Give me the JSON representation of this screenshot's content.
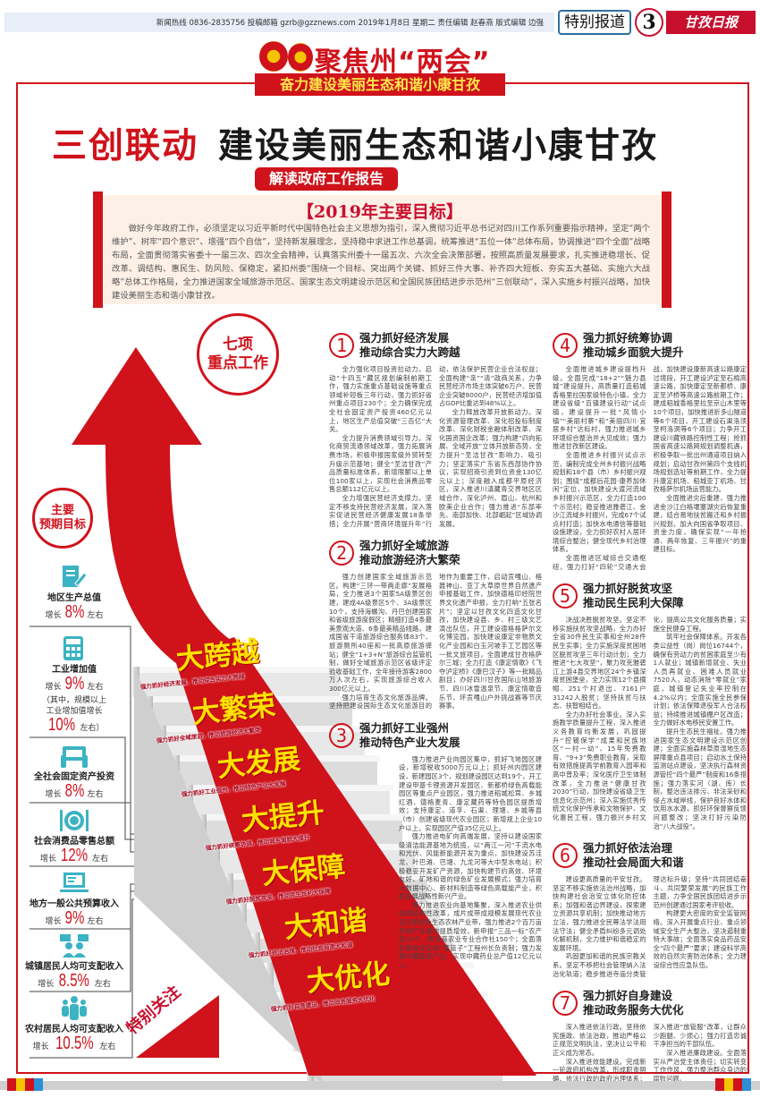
{
  "masthead": {
    "info": "新闻热线 0836-2835756  投稿邮箱 gzrb@gzznews.com  2019年1月8日 星期二  责任编辑 赵春燕  版式编辑 边强",
    "section": "特别报道",
    "page_number": "3",
    "paper_logo": "甘孜日报"
  },
  "focus": {
    "title": "聚焦州“两会”",
    "banner": "奋力建设美丽生态和谐小康甘孜"
  },
  "headline": {
    "red": "三创联动",
    "dark": "建设美丽生态和谐小康甘孜"
  },
  "report_label": "解读政府工作报告",
  "goals_box": {
    "heading": "【2019年主要目标】",
    "text": "做好今年政府工作，必须坚定以习近平新时代中国特色社会主义思想为指引，深入贯彻习近平总书记对四川工作系列重要指示精神，坚定“两个维护”、树牢“四个意识”、增强“四个自信”，坚持新发展理念，坚持稳中求进工作总基调，统筹推进“五位一体”总体布局，协调推进“四个全面”战略布局，全面贯彻落实省委十一届三次、四次全会精神，认真落实州委十一届五次、六次全会决策部署，按照高质量发展要求，扎实推进稳增长、促改革、调结构、惠民生、防风险、保稳定，紧扣州委“围绕一个目标、突出两个关键、抓好三件大事、补齐四大短板、夯实五大基础、实施六大战略”总体工作格局，全力推进国家全域旅游示范区、国家生态文明建设示范区和全国民族团结进步示范州“三创联动”，深入实施乡村振兴战略，加快建设美丽生态和谐小康甘孜。"
  },
  "circle_seven": "七项\n重点工作",
  "circle_goals": "主要\n预期目标",
  "expected_goals": [
    {
      "icon": "document-pen-icon",
      "label": "地区生产总值",
      "prefix": "增长",
      "value": "8%",
      "suffix": "左右"
    },
    {
      "icon": "calculator-icon",
      "label": "工业增加值",
      "prefix": "增长",
      "value": "9%",
      "suffix": "左右",
      "note_1": "（其中，规模以上",
      "note_2": "工业增加值增长",
      "note_value": "10%",
      "note_suffix": "左右）"
    },
    {
      "icon": "tablet-hands-icon",
      "label": "全社会固定资产投资",
      "prefix": "增长",
      "value": "8%",
      "suffix": "左右"
    },
    {
      "icon": "plate-cutlery-icon",
      "label": "社会消费品零售总额",
      "prefix": "增长",
      "value": "12%",
      "suffix": "左右"
    },
    {
      "icon": "laptop-icon",
      "label": "地方一般公共预算收入",
      "prefix": "增长",
      "value": "9%",
      "suffix": "左右"
    },
    {
      "icon": "people-chat-icon",
      "label": "城镇居民人均可支配收入",
      "prefix": "增长",
      "value": "8.5%",
      "suffix": "左右"
    },
    {
      "icon": "group-icon",
      "label": "农村居民人均可支配收入",
      "prefix": "增长",
      "value": "10.5%",
      "suffix": "左右"
    }
  ],
  "stairs": [
    {
      "word": "大跨越",
      "caption": "强力抓好经济发展，推动综合实力大跨越"
    },
    {
      "word": "大繁荣",
      "caption": "强力抓好全域旅游，推动旅游经济大繁荣"
    },
    {
      "word": "大发展",
      "caption": "强力抓好工业强州，推动特色产业大发展"
    },
    {
      "word": "大提升",
      "caption": "强力抓好统筹协调，推动城乡面貌大提升"
    },
    {
      "word": "大保障",
      "caption": "强力抓好脱贫攻坚，推动民生民利大保障"
    },
    {
      "word": "大和谐",
      "caption": "强力抓好依法治理，推动社会局面大和谐"
    },
    {
      "word": "大优化",
      "caption": "强力抓好自身建设，推动政务服务大优化"
    }
  ],
  "special_focus": "特别关注",
  "sections": [
    {
      "num": "1",
      "title_1": "强力抓好经济发展",
      "title_2": "推动综合实力大跨越",
      "paragraphs": [
        "全力强化项目投资拉动力。启动“十四五”藏区规划编制前期工作，强力实施重点基础设施等重点领域补短板三年行动，强力抓好省州重点项目230个；全力确保完成全社会固定资产投资460亿元以上，地区生产总值突破“三百亿”大关。",
        "全力提升消费领域引导力。深化商贸流通领域改革，强力拓展消费市场，积极申报国家级外贸转型升级示范基地；健全“圣洁甘孜”产品质量标准体系，新增限额以上单位100家以上，实现社会消费品零售总额112亿元以上。",
        "全力增强民营经济支撑力。坚定不移支持民营经济发展，深入落实促进民营经济健康发展18条举措；全力开展“营商环境提升年”行动，依法保护民营企业合法权益；全面构建“亲”“清”政商关系，力争民营经济市场主体突破6万户、民营企业突破8000户，民营经济增加值占GDP比重达到48%以上。",
        "全力释放改革开放新动力。深化资源管理改革、深化招投标制度改革、深化财税金融体制改革、深化国资国企改革；强力构建“四向拓展、全域开放”立体开放新态势，全力提升“圣洁甘孜”影响力、吸引力；坚定落实广东省东西部协作协议，实现招商引资到位资金130亿元以上；深度融入成都平原经济区，深入推进川滇藏青交界地区区域合作，深化泸州、眉山、杭州和欧美企业合作；强力推进“东部率先、南部加快、北部崛起”区域协调发展。"
      ]
    },
    {
      "num": "2",
      "title_1": "强力抓好全域旅游",
      "title_2": "推动旅游经济大繁荣",
      "paragraphs": [
        "强力创建国家全域旅游示范区。构建“三环一带两走廊”发展格局，全力推进3个国家5A级景区创建，建成4A级景区5个、3A级景区10个，支持海螺沟、丹巴创建国家和省级旅游度假区；精细打造4条最美景观大道、6条最美精品线路，建成国省干道旅游综合服务体83个、旅游厕所40座和一批高原旅游驿站；健全“1+3+N”旅游综合监管机制，做好全域旅游示范区省级评定验收基础工作，全年接待游客2800万人次左右，实现旅游综合收入300亿元以上。",
        "强力培育生态文化旅游品牌。坚持把建设国际生态文化旅游目的地作为重要工作，启动贡嘎山、格聂神山、亚丁大草原世界自然遗产申报基础工作，加快德格印经院世界文化遗产申报，全力打响“五张名片”；坚定以甘孜文化四造文化甘孜，加快建设县、乡、村三级文艺演出队伍，开工建设德格格萨尔文化博览园，加快建设康定非物质文化产业园和白玉河坡手工艺园区等一批文旅项目，全面建成甘孜格萨尔三城；全力打造《康定情歌》《飞夺泸定桥》《康巴汉子》等一批精品剧目；办好四川甘孜国际山地旅游节、四川冰雪温泉节、康定情歌音乐节、环贡嘎山户外挑战赛等节庆赛事。"
      ]
    },
    {
      "num": "3",
      "title_1": "强力抓好工业强州",
      "title_2": "推动特色产业大发展",
      "paragraphs": [
        "强力推进产业向园区集中，抓好飞地园区建设，新增税收5000万元以上；抓好州内园区建设，新建园区3个，规划建设园区达到19个，开工建设甲基卡锂资源开发园区、新都桥绿色高载能园区等重点产业园区，强力推进稻城松茸、乡城红酒、德格麦青、康定藏药等特色园区提质增效；支持康定、道孚、石渠、理塘、乡城等县（市）创建省级现代农业园区；新增规上企业10户以上，实现园区产值35亿元以上。",
        "强力推进电矿向高端发展，坚持以建设国家级清洁能源基地为统揽，以“两江一河”干流水电和光伏、风能新能源开发为重点，加快建设苏洼龙、叶巴滩、巴塘、九龙河等大中型水电站；积极稳妥开发矿产资源，加快构建节约高效、环境友好、矿地和谐的绿色矿业发展模式；强力培育大数据中心、新材料制造等绿色高载能产业，积极发展战略性新兴产业。",
        "强力推进农业向基地集聚，深入推进农业供给侧结构性改革，成片成带成规模发展现代农业百公里绿色生态农林产业带，强力推进2个百万亩农林产业基地提质增效，新申报“三品一标”农产品10个，新培育农业专业合作社150个；全面落实粮食安全和“菜篮子”工程州长负责制；强力发展中藏医药产业，实现中藏药业总产值12亿元以上。"
      ]
    },
    {
      "num": "4",
      "title_1": "强力抓好统筹协调",
      "title_2": "推动城乡面貌大提升",
      "paragraphs": [
        "全面推进城乡建设提档升级。全面完成“18+2”“魅力县城”建设提升，高质量打造稻城香格里拉国家级特色小镇，全力建设省级“百镇建设行动”试点镇，建设提升一批“风情小镇”“美丽村寨”和“美丽四川·宜居乡村”达标村，强力推进城乡环境综合整治并大见成效；强力推进甘孜新区建设。",
        "全面推进乡村振兴试点示范，编制完成全州乡村振兴战略规划和18个县（市）乡村振兴规划；围绕“成都后花园·康养加休闲”定位，加快建设大渡河流域乡村振兴示范区，全力打造100个示范村；稳妥推进雅砻江、金沙江流域乡村振兴，完成67个试点村打造；加快水电通信等基础设施建设，全力抓好农村人居环境综合整治；健全现代乡村治理体系。",
        "全面推进区域综合交通枢纽，强力打好“四轮”交通大会战，加快建设康新高速公路康定过境段，开工建设泸定至石棉高速公路，加快康定至新都桥、康定至泸桥等高速公路前期工作；建成稻城香格里拉至京山木里等10个项目，加快推进折多山隧道等6个项目，开工建设石渠洛须至柯洛洞等6个项目；力争开工建设川藏铁路控制性工程；抢抓国省高速公路网规划调整机遇，积极争取一批出州通道项目纳入规划；启动甘孜州第四个支线机场规划选址等前期工作，全力提升康定机场、稻城亚丁机场、甘孜格萨尔机场运营能力。",
        "全面推进灾后重建，强力推进金沙江白格堰塞湖灾后恢复重建，结合易地扶贫搬迁和乡村振兴规划，加大向国省争取项目、资金力度，确保实现“一年抢通、两年恢复、三年振兴”的重建目标。"
      ]
    },
    {
      "num": "5",
      "title_1": "强力抓好脱贫攻坚",
      "title_2": "推动民生民利大保障",
      "paragraphs": [
        "决战决胜脱贫攻坚。坚定不移实施扶贫攻坚战略，全力办好全省30件民生实事和全州28件民生实事；全力实施深度贫困地区脱贫攻坚三年行动计划；全力推进“七大攻坚”，聚力攻克雅砻江上游4县交界地区24个乡镇深度贫困堡垒，全力实现12个县摘帽、251个村退出、7161户31242人脱贫；坚持扶贫与扶志、扶智相结合。",
        "全力办好社会事业。深入实施教学质量提升工程，深入推进义务教育均衡发展，巩固提升“控辍保学”成果和民族地区“一村一幼”、15年免费教育、“9+3”免费职业教育，采取有效措施提高学前教育入园率和高中普及率；深化医疗卫生体制改革，全力推进“健康甘孜2030”行动，加快建设省级卫生信息化示范州；深入实施优秀传统文化保护传承和文物保护、文化惠民工程，强力振兴乡村文化，提高公共文化服务质量；实施全民健身工程。",
        "筑牢社会保障体系。开发各类公益性（岗）岗位16744个，确保有劳动力的贫困家庭至少有1人就业；城镇新增就业、失业人员再就业、困难人员就业7520人，动态消除“零就业”家庭，城镇登记失业率控制在4.2%以内；全面实施全民参保计划；依法保障退役军人合法权益；持续推进城镇棚户区改造；全力做好水电移民安置工作。",
        "提升生态民生福祉。强力推进国家生态文明建设示范区创建；全面实施森林草原湿地生态屏障重点县项目；启动水土保持监测站点建设，坚决执行森林资源管控“四个最严”制度和16条措施；强力落实河（湖、库）长制，整治违法排污、非法采砂和侵占水域岸线，保护良好水体和饮用水水源，抓好环保督察反馈问题整改；坚决打好污染防治“八大战役”。"
      ]
    },
    {
      "num": "6",
      "title_1": "强力抓好依法治理",
      "title_2": "推动社会局面大和谐",
      "paragraphs": [
        "建设更高质量的平安甘孜。坚定不移实施依法治州战略，加快构建社会治安立体化防控体系；加强和谐边界建设，探索建立资源共享机制；加快推动地方立法，强力推进全民尊法学法用法守法；健全矛盾纠纷多元调处化解机制，全力维护和谐稳定的发展环境。",
        "巩固更加和谐的民族宗教关系。坚定不移把社会管理纳入法治化轨道；稳步推进寺庙分类管理达标升级；坚持“共同团结奋斗、共同繁荣发展”的民族工作主题，力争全国民族团结进步示范州创建通过国家考评验收。",
        "构建更大密度的安全监管网络。深入开展重点行业、重点领域安全生产大整治，坚决遏制重特大事故；全面落实食品药品安全“四个最严”要求；建设科学高效的自然灾害防治体系；全力建设综合性应急队伍。"
      ]
    },
    {
      "num": "7",
      "title_1": "强力抓好自身建设",
      "title_2": "推动政务服务大优化",
      "paragraphs": [
        "深入推进依法行政。坚持依宪施政、依法治政，推动严格公正规范文明执法，坚决让公平和正义成为常态。",
        "深入推进效能建设。完成新一轮政府机构改革，形成职责明确、依法行政的政府治理体系；深入推进“放管服”改革，让群众少跑腿、少烦心；强力打造忠诚干净担当的干部队伍。",
        "深入推进廉政建设。全面落实从严治党主体责任；切实转变工作作风，强力整治群众身边的腐败问题。"
      ]
    }
  ],
  "colors": {
    "red": "#d0121b",
    "teal": "#3bb3c3",
    "yellow": "#ffe100",
    "peach": "#fdf0e6"
  }
}
